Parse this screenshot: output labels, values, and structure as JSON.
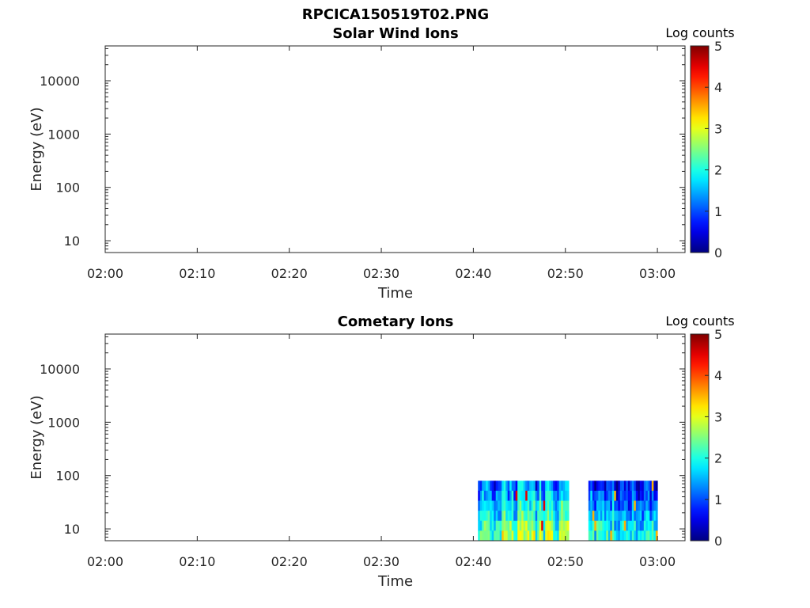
{
  "figure_title": "RPCICA150519T02.PNG",
  "chart_data": [
    {
      "type": "heatmap",
      "title": "Solar Wind Ions",
      "xlabel": "Time",
      "ylabel": "Energy (eV)",
      "x_ticks": [
        "02:00",
        "02:10",
        "02:20",
        "02:30",
        "02:40",
        "02:50",
        "03:00"
      ],
      "xlim": [
        "02:00",
        "03:03"
      ],
      "y_scale": "log",
      "y_ticks": [
        10,
        100,
        1000,
        10000
      ],
      "y_tick_labels": [
        "10",
        "100",
        "1000",
        "10000"
      ],
      "ylim": [
        6,
        45000
      ],
      "colorbar": {
        "label": "Log counts",
        "range": [
          0,
          5
        ],
        "ticks": [
          "0",
          "1",
          "2",
          "3",
          "4",
          "5"
        ],
        "colormap": "jet"
      },
      "data_blocks": []
    },
    {
      "type": "heatmap",
      "title": "Cometary Ions",
      "xlabel": "Time",
      "ylabel": "Energy (eV)",
      "x_ticks": [
        "02:00",
        "02:10",
        "02:20",
        "02:30",
        "02:40",
        "02:50",
        "03:00"
      ],
      "xlim": [
        "02:00",
        "03:03"
      ],
      "y_scale": "log",
      "y_ticks": [
        10,
        100,
        1000,
        10000
      ],
      "y_tick_labels": [
        "10",
        "100",
        "1000",
        "10000"
      ],
      "ylim": [
        6,
        45000
      ],
      "colorbar": {
        "label": "Log counts",
        "range": [
          0,
          5
        ],
        "ticks": [
          "0",
          "1",
          "2",
          "3",
          "4",
          "5"
        ],
        "colormap": "jet"
      },
      "data_blocks": [
        {
          "t_start": "02:40.5",
          "t_end": "02:50.3",
          "energy_min": 6,
          "energy_max": 80,
          "log_counts_range": [
            0.5,
            4.5
          ]
        },
        {
          "t_start": "02:52.5",
          "t_end": "03:00",
          "energy_min": 6,
          "energy_max": 80,
          "log_counts_range": [
            0.5,
            3.5
          ]
        }
      ]
    }
  ]
}
